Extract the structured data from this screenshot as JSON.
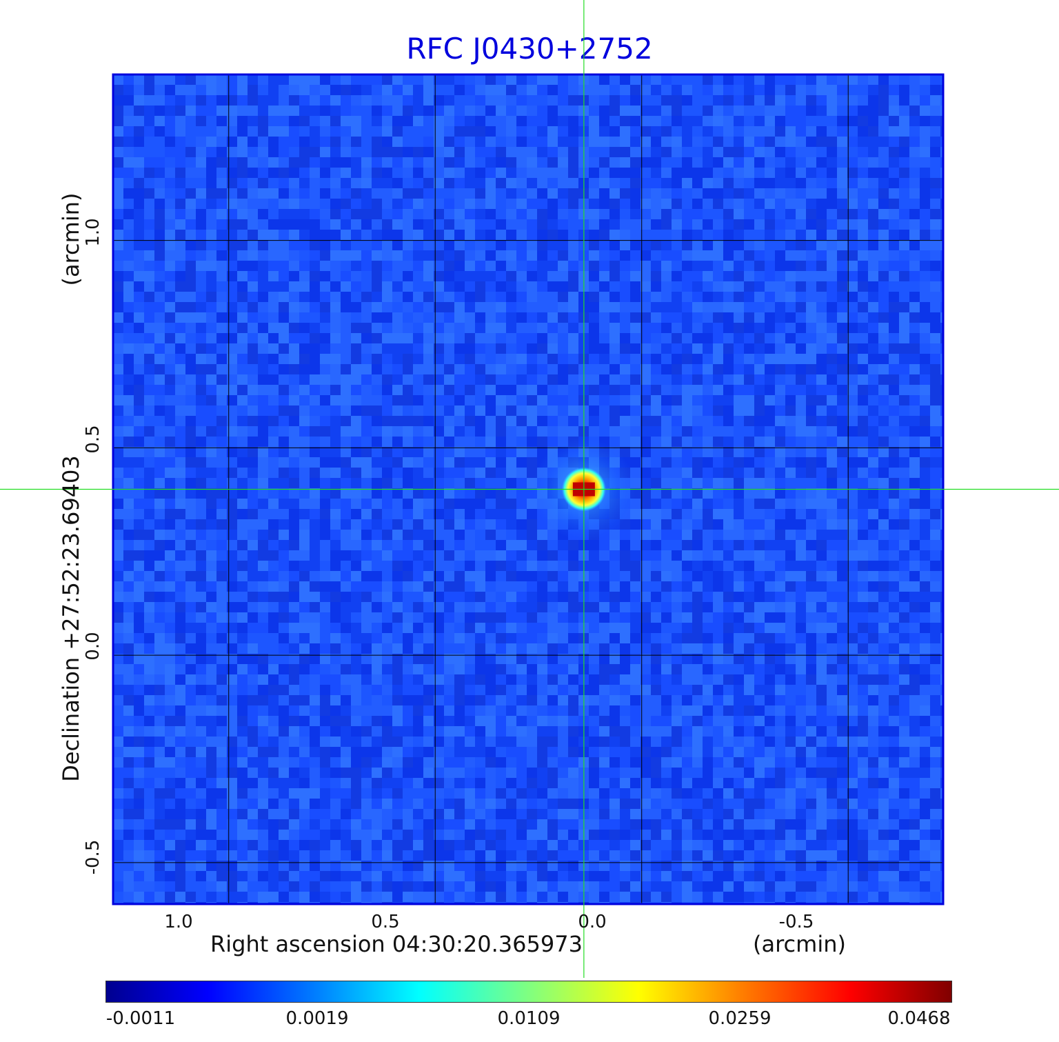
{
  "chart_data": {
    "type": "heatmap",
    "title": "RFC J0430+2752",
    "xlabel": "Right ascension  04:30:20.365973",
    "xunit": "(arcmin)",
    "ylabel": "Declination  +27:52:23.69403",
    "yunit": "(arcmin)",
    "xlim": [
      1.28,
      -0.73
    ],
    "ylim": [
      -0.6,
      1.4
    ],
    "x_ticks": [
      1.0,
      0.5,
      0.0,
      -0.5
    ],
    "x_tick_labels": [
      "1.0",
      "0.5",
      "0.0",
      "-0.5"
    ],
    "y_ticks": [
      1.0,
      0.5,
      0.0,
      -0.5
    ],
    "y_tick_labels": [
      "1.0",
      "0.5",
      "0.0",
      "-0.5"
    ],
    "grid": true,
    "crosshair": {
      "x": 0.14,
      "y": 0.4
    },
    "source_peak": {
      "x": 0.14,
      "y": 0.4,
      "value": 0.0468
    },
    "colorbar": {
      "colormap": "jet",
      "tick_values": [
        -0.0011,
        0.0019,
        0.0109,
        0.0259,
        0.0468
      ],
      "tick_labels": [
        "-0.0011",
        "0.0019",
        "0.0109",
        "0.0259",
        "0.0468"
      ]
    }
  },
  "colors": {
    "title": "#0000dd",
    "frame": "#0000dd",
    "grid": "#000000",
    "crosshair": "#22dd22",
    "background_noise": "#1a4dff"
  }
}
